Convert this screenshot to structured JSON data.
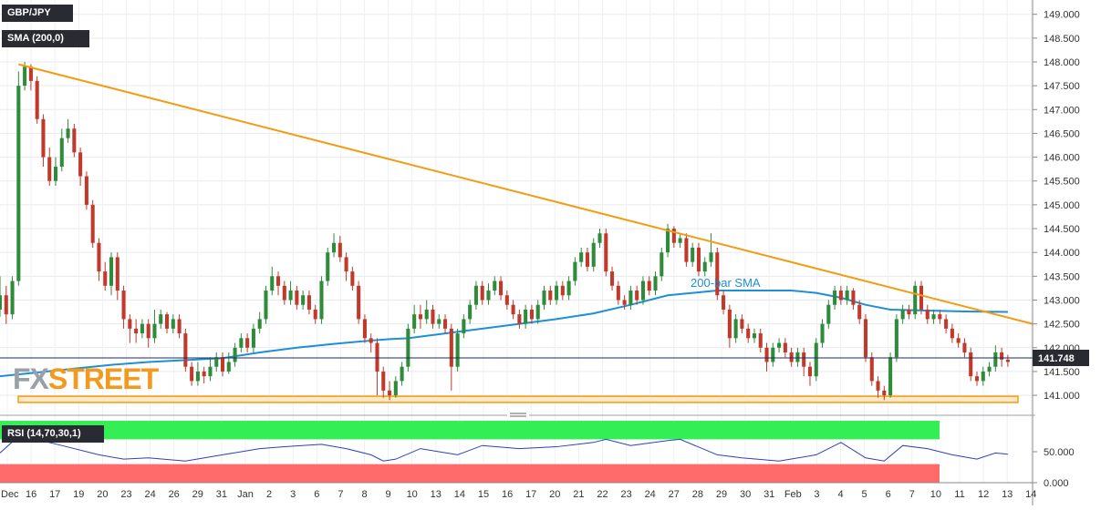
{
  "symbol": "GBP/JPY",
  "sma_label": "SMA (200,0)",
  "rsi_label": "RSI (14,70,30,1)",
  "watermark": {
    "fx": "FX",
    "street": "STREET"
  },
  "annotation": "200-bar SMA",
  "last_price": "141.748",
  "colors": {
    "up": "#2e8b3a",
    "down": "#c0392b",
    "sma": "#1e8fd6",
    "trendline": "#f39c12",
    "support": "#f39c12",
    "rsi": "#2c3fbf",
    "rsi_overbought": "#33ee55",
    "rsi_oversold": "#ff6b6b",
    "price_tag": "#2a2a33"
  },
  "price_axis": {
    "ticks": [
      "149.000",
      "148.500",
      "148.000",
      "147.500",
      "147.000",
      "146.500",
      "146.000",
      "145.500",
      "145.000",
      "144.500",
      "144.000",
      "143.500",
      "143.000",
      "142.500",
      "142.000",
      "141.500",
      "141.000"
    ]
  },
  "rsi_axis": {
    "ticks": [
      "50.000",
      "0.000"
    ],
    "overbought": 70,
    "oversold": 30
  },
  "x_axis": {
    "labels": [
      "Dec",
      "16",
      "17",
      "19",
      "20",
      "23",
      "24",
      "26",
      "29",
      "31",
      "Jan",
      "2",
      "3",
      "6",
      "7",
      "8",
      "9",
      "10",
      "13",
      "14",
      "15",
      "16",
      "17",
      "20",
      "21",
      "22",
      "23",
      "24",
      "27",
      "28",
      "29",
      "30",
      "31",
      "Feb",
      "3",
      "4",
      "5",
      "6",
      "7",
      "10",
      "11",
      "12",
      "13",
      "14"
    ]
  },
  "chart_data": {
    "type": "candlestick",
    "title": "GBP/JPY",
    "indicator": "SMA (200,0)",
    "last": 141.748,
    "y_range": [
      140.6,
      149.3
    ],
    "x_range": [
      0,
      167
    ],
    "candles": [
      [
        0,
        142.8,
        143.1,
        143.5,
        142.65
      ],
      [
        1,
        143.1,
        142.7,
        143.3,
        142.5
      ],
      [
        2,
        142.7,
        143.4,
        143.5,
        142.6
      ],
      [
        3,
        143.4,
        147.5,
        147.8,
        143.3
      ],
      [
        4,
        147.5,
        147.9,
        148.0,
        147.4
      ],
      [
        5,
        147.9,
        147.6,
        147.95,
        147.4
      ],
      [
        6,
        147.6,
        146.8,
        147.7,
        146.7
      ],
      [
        7,
        146.8,
        146.0,
        146.9,
        145.8
      ],
      [
        8,
        146.0,
        145.5,
        146.2,
        145.4
      ],
      [
        9,
        145.5,
        145.8,
        146.0,
        145.4
      ],
      [
        10,
        145.8,
        146.4,
        146.6,
        145.7
      ],
      [
        11,
        146.4,
        146.6,
        146.8,
        146.3
      ],
      [
        12,
        146.6,
        146.1,
        146.7,
        146.0
      ],
      [
        13,
        146.1,
        145.6,
        146.2,
        145.4
      ],
      [
        14,
        145.6,
        145.0,
        145.7,
        144.9
      ],
      [
        15,
        145.0,
        144.2,
        145.1,
        144.1
      ],
      [
        16,
        144.2,
        143.6,
        144.3,
        143.4
      ],
      [
        17,
        143.6,
        143.3,
        143.8,
        143.2
      ],
      [
        18,
        143.3,
        143.9,
        144.0,
        143.1
      ],
      [
        19,
        143.9,
        143.2,
        144.0,
        143.0
      ],
      [
        20,
        143.2,
        142.6,
        143.3,
        142.4
      ],
      [
        21,
        142.6,
        142.4,
        142.7,
        142.1
      ],
      [
        22,
        142.4,
        142.3,
        142.6,
        142.1
      ],
      [
        23,
        142.3,
        142.5,
        142.6,
        142.2
      ],
      [
        24,
        142.5,
        142.2,
        142.6,
        142.0
      ],
      [
        25,
        142.2,
        142.5,
        142.8,
        142.1
      ],
      [
        26,
        142.5,
        142.7,
        142.8,
        142.4
      ],
      [
        27,
        142.7,
        142.4,
        142.75,
        142.3
      ],
      [
        28,
        142.4,
        142.6,
        142.7,
        142.3
      ],
      [
        29,
        142.6,
        142.3,
        142.7,
        142.2
      ],
      [
        30,
        142.3,
        141.6,
        142.4,
        141.5
      ],
      [
        31,
        141.6,
        141.3,
        141.7,
        141.2
      ],
      [
        32,
        141.3,
        141.5,
        141.7,
        141.2
      ],
      [
        33,
        141.5,
        141.4,
        141.6,
        141.25
      ],
      [
        34,
        141.4,
        141.6,
        141.8,
        141.3
      ],
      [
        35,
        141.6,
        141.8,
        141.9,
        141.5
      ],
      [
        36,
        141.8,
        141.5,
        141.9,
        141.4
      ],
      [
        37,
        141.5,
        141.7,
        141.9,
        141.45
      ],
      [
        38,
        141.7,
        142.0,
        142.1,
        141.6
      ],
      [
        39,
        142.0,
        142.2,
        142.3,
        141.9
      ],
      [
        40,
        142.2,
        142.0,
        142.3,
        141.9
      ],
      [
        41,
        142.0,
        142.4,
        142.5,
        141.9
      ],
      [
        42,
        142.4,
        142.6,
        142.75,
        142.3
      ],
      [
        43,
        142.6,
        143.2,
        143.3,
        142.5
      ],
      [
        44,
        143.2,
        143.5,
        143.7,
        143.1
      ],
      [
        45,
        143.5,
        143.3,
        143.6,
        143.1
      ],
      [
        46,
        143.3,
        143.0,
        143.4,
        142.9
      ],
      [
        47,
        143.0,
        143.2,
        143.4,
        142.9
      ],
      [
        48,
        143.2,
        142.9,
        143.3,
        142.8
      ],
      [
        49,
        142.9,
        143.1,
        143.2,
        142.8
      ],
      [
        50,
        143.1,
        142.8,
        143.2,
        142.7
      ],
      [
        51,
        142.8,
        142.6,
        142.9,
        142.5
      ],
      [
        52,
        142.6,
        143.4,
        143.5,
        142.5
      ],
      [
        53,
        143.4,
        144.0,
        144.1,
        143.3
      ],
      [
        54,
        144.0,
        144.2,
        144.4,
        143.9
      ],
      [
        55,
        144.2,
        143.9,
        144.35,
        143.8
      ],
      [
        56,
        143.9,
        143.6,
        144.0,
        143.4
      ],
      [
        57,
        143.6,
        143.3,
        143.7,
        143.2
      ],
      [
        58,
        143.3,
        142.6,
        143.4,
        142.5
      ],
      [
        59,
        142.6,
        142.2,
        142.7,
        142.1
      ],
      [
        60,
        142.2,
        142.1,
        142.3,
        141.9
      ],
      [
        61,
        142.1,
        141.5,
        142.2,
        141.0
      ],
      [
        62,
        141.5,
        141.1,
        141.6,
        140.95
      ],
      [
        63,
        141.1,
        141.0,
        141.3,
        140.9
      ],
      [
        64,
        141.0,
        141.3,
        141.4,
        140.95
      ],
      [
        65,
        141.3,
        141.6,
        141.7,
        141.2
      ],
      [
        66,
        141.6,
        142.4,
        142.5,
        141.5
      ],
      [
        67,
        142.4,
        142.7,
        142.9,
        142.3
      ],
      [
        68,
        142.7,
        142.6,
        142.9,
        142.4
      ],
      [
        69,
        142.6,
        142.8,
        143.0,
        142.5
      ],
      [
        70,
        142.8,
        142.5,
        142.9,
        142.4
      ],
      [
        71,
        142.5,
        142.6,
        142.7,
        142.4
      ],
      [
        72,
        142.6,
        142.4,
        142.7,
        142.3
      ],
      [
        73,
        142.4,
        141.6,
        142.5,
        141.1
      ],
      [
        74,
        141.6,
        142.3,
        142.4,
        141.5
      ],
      [
        75,
        142.3,
        142.6,
        142.7,
        142.2
      ],
      [
        76,
        142.6,
        142.9,
        143.0,
        142.5
      ],
      [
        77,
        142.9,
        143.3,
        143.4,
        142.8
      ],
      [
        78,
        143.3,
        143.0,
        143.4,
        142.9
      ],
      [
        79,
        143.0,
        143.2,
        143.35,
        142.9
      ],
      [
        80,
        143.2,
        143.4,
        143.5,
        143.1
      ],
      [
        81,
        143.4,
        143.1,
        143.5,
        143.0
      ],
      [
        82,
        143.1,
        142.9,
        143.2,
        142.8
      ],
      [
        83,
        142.9,
        142.7,
        143.0,
        142.6
      ],
      [
        84,
        142.7,
        142.5,
        142.8,
        142.4
      ],
      [
        85,
        142.5,
        142.8,
        142.9,
        142.4
      ],
      [
        86,
        142.8,
        142.6,
        142.9,
        142.5
      ],
      [
        87,
        142.6,
        142.9,
        143.0,
        142.5
      ],
      [
        88,
        142.9,
        143.2,
        143.3,
        142.8
      ],
      [
        89,
        143.2,
        143.0,
        143.3,
        142.9
      ],
      [
        90,
        143.0,
        143.3,
        143.4,
        142.9
      ],
      [
        91,
        143.3,
        143.1,
        143.4,
        143.0
      ],
      [
        92,
        143.1,
        143.4,
        143.5,
        143.0
      ],
      [
        93,
        143.4,
        143.8,
        143.9,
        143.3
      ],
      [
        94,
        143.8,
        144.0,
        144.1,
        143.7
      ],
      [
        95,
        144.0,
        143.7,
        144.1,
        143.6
      ],
      [
        96,
        143.7,
        144.2,
        144.3,
        143.6
      ],
      [
        97,
        144.2,
        144.4,
        144.5,
        144.1
      ],
      [
        98,
        144.4,
        143.6,
        144.5,
        143.5
      ],
      [
        99,
        143.6,
        143.3,
        143.7,
        143.2
      ],
      [
        100,
        143.3,
        143.0,
        143.4,
        142.9
      ],
      [
        101,
        143.0,
        142.9,
        143.1,
        142.8
      ],
      [
        102,
        142.9,
        143.2,
        143.3,
        142.8
      ],
      [
        103,
        143.2,
        143.0,
        143.3,
        142.9
      ],
      [
        104,
        143.0,
        143.4,
        143.5,
        142.9
      ],
      [
        105,
        143.4,
        143.2,
        143.5,
        143.1
      ],
      [
        106,
        143.2,
        143.5,
        143.6,
        143.1
      ],
      [
        107,
        143.5,
        144.0,
        144.1,
        143.4
      ],
      [
        108,
        144.0,
        144.5,
        144.6,
        143.9
      ],
      [
        109,
        144.5,
        144.2,
        144.55,
        144.1
      ],
      [
        110,
        144.2,
        144.3,
        144.4,
        144.1
      ],
      [
        111,
        144.3,
        143.8,
        144.4,
        143.7
      ],
      [
        112,
        143.8,
        144.1,
        144.2,
        143.7
      ],
      [
        113,
        144.1,
        143.6,
        144.2,
        143.5
      ],
      [
        114,
        143.6,
        143.8,
        143.9,
        143.5
      ],
      [
        115,
        143.8,
        144.0,
        144.4,
        143.7
      ],
      [
        116,
        144.0,
        143.1,
        144.1,
        143.0
      ],
      [
        117,
        143.1,
        142.8,
        143.2,
        142.7
      ],
      [
        118,
        142.8,
        142.2,
        142.9,
        142.0
      ],
      [
        119,
        142.2,
        142.6,
        142.7,
        142.1
      ],
      [
        120,
        142.6,
        142.4,
        142.7,
        142.3
      ],
      [
        121,
        142.4,
        142.2,
        142.5,
        142.1
      ],
      [
        122,
        142.2,
        142.3,
        142.4,
        142.1
      ],
      [
        123,
        142.3,
        142.0,
        142.4,
        141.9
      ],
      [
        124,
        142.0,
        141.7,
        142.1,
        141.5
      ],
      [
        125,
        141.7,
        142.0,
        142.1,
        141.6
      ],
      [
        126,
        142.0,
        142.1,
        142.2,
        141.9
      ],
      [
        127,
        142.1,
        141.9,
        142.2,
        141.8
      ],
      [
        128,
        141.9,
        141.7,
        142.0,
        141.6
      ],
      [
        129,
        141.7,
        141.9,
        142.0,
        141.6
      ],
      [
        130,
        141.9,
        141.6,
        142.0,
        141.4
      ],
      [
        131,
        141.6,
        141.4,
        141.7,
        141.2
      ],
      [
        132,
        141.4,
        142.1,
        142.2,
        141.3
      ],
      [
        133,
        142.1,
        142.5,
        142.6,
        142.0
      ],
      [
        134,
        142.5,
        142.9,
        143.0,
        142.4
      ],
      [
        135,
        142.9,
        143.2,
        143.3,
        142.8
      ],
      [
        136,
        143.2,
        143.0,
        143.3,
        142.9
      ],
      [
        137,
        143.0,
        143.2,
        143.3,
        142.9
      ],
      [
        138,
        143.2,
        142.9,
        143.25,
        142.8
      ],
      [
        139,
        142.9,
        142.6,
        143.0,
        142.5
      ],
      [
        140,
        142.6,
        141.8,
        142.7,
        141.7
      ],
      [
        141,
        141.8,
        141.3,
        141.9,
        141.2
      ],
      [
        142,
        141.3,
        141.1,
        141.4,
        140.95
      ],
      [
        143,
        141.1,
        141.0,
        141.2,
        140.9
      ],
      [
        144,
        141.0,
        141.8,
        141.9,
        140.95
      ],
      [
        145,
        141.8,
        142.6,
        142.7,
        141.7
      ],
      [
        146,
        142.6,
        142.8,
        142.9,
        142.5
      ],
      [
        147,
        142.8,
        142.7,
        142.9,
        142.6
      ],
      [
        148,
        142.7,
        143.3,
        143.4,
        142.6
      ],
      [
        149,
        143.3,
        142.8,
        143.4,
        142.7
      ],
      [
        150,
        142.8,
        142.6,
        142.9,
        142.5
      ],
      [
        151,
        142.6,
        142.7,
        142.8,
        142.5
      ],
      [
        152,
        142.7,
        142.6,
        142.8,
        142.5
      ],
      [
        153,
        142.6,
        142.4,
        142.7,
        142.3
      ],
      [
        154,
        142.4,
        142.2,
        142.5,
        142.1
      ],
      [
        155,
        142.2,
        142.1,
        142.3,
        142.0
      ],
      [
        156,
        142.1,
        141.9,
        142.2,
        141.8
      ],
      [
        157,
        141.9,
        141.4,
        142.0,
        141.3
      ],
      [
        158,
        141.4,
        141.3,
        141.5,
        141.2
      ],
      [
        159,
        141.3,
        141.5,
        141.6,
        141.2
      ],
      [
        160,
        141.5,
        141.6,
        141.7,
        141.4
      ],
      [
        161,
        141.6,
        141.9,
        142.05,
        141.5
      ],
      [
        162,
        141.9,
        141.75,
        142.0,
        141.6
      ],
      [
        163,
        141.75,
        141.7,
        141.85,
        141.6
      ]
    ],
    "sma_200": [
      [
        0,
        141.4
      ],
      [
        6,
        141.48
      ],
      [
        12,
        141.56
      ],
      [
        18,
        141.64
      ],
      [
        24,
        141.7
      ],
      [
        30,
        141.74
      ],
      [
        36,
        141.78
      ],
      [
        42,
        141.9
      ],
      [
        48,
        142.0
      ],
      [
        54,
        142.08
      ],
      [
        60,
        142.15
      ],
      [
        63,
        142.18
      ],
      [
        66,
        142.2
      ],
      [
        72,
        142.3
      ],
      [
        78,
        142.4
      ],
      [
        84,
        142.5
      ],
      [
        90,
        142.6
      ],
      [
        96,
        142.72
      ],
      [
        102,
        142.9
      ],
      [
        108,
        143.1
      ],
      [
        112,
        143.15
      ],
      [
        116,
        143.2
      ],
      [
        120,
        143.2
      ],
      [
        124,
        143.2
      ],
      [
        128,
        143.2
      ],
      [
        132,
        143.15
      ],
      [
        136,
        143.05
      ],
      [
        140,
        142.9
      ],
      [
        144,
        142.8
      ],
      [
        150,
        142.78
      ],
      [
        156,
        142.76
      ],
      [
        163,
        142.75
      ]
    ],
    "trendline": [
      [
        3,
        147.95
      ],
      [
        167,
        142.5
      ]
    ],
    "support_zone": [
      140.85,
      140.98
    ],
    "rsi": {
      "range": [
        0,
        100
      ],
      "values": [
        [
          0,
          48
        ],
        [
          3,
          75
        ],
        [
          5,
          72
        ],
        [
          10,
          60
        ],
        [
          16,
          45
        ],
        [
          20,
          38
        ],
        [
          24,
          40
        ],
        [
          30,
          35
        ],
        [
          36,
          45
        ],
        [
          42,
          55
        ],
        [
          46,
          58
        ],
        [
          52,
          62
        ],
        [
          56,
          55
        ],
        [
          60,
          45
        ],
        [
          62,
          35
        ],
        [
          64,
          38
        ],
        [
          68,
          55
        ],
        [
          74,
          45
        ],
        [
          78,
          60
        ],
        [
          84,
          55
        ],
        [
          90,
          58
        ],
        [
          96,
          65
        ],
        [
          98,
          70
        ],
        [
          102,
          60
        ],
        [
          108,
          68
        ],
        [
          110,
          70
        ],
        [
          116,
          45
        ],
        [
          120,
          40
        ],
        [
          126,
          35
        ],
        [
          132,
          45
        ],
        [
          136,
          65
        ],
        [
          140,
          40
        ],
        [
          143,
          35
        ],
        [
          146,
          60
        ],
        [
          150,
          55
        ],
        [
          154,
          45
        ],
        [
          158,
          38
        ],
        [
          161,
          48
        ],
        [
          163,
          46
        ]
      ]
    }
  }
}
